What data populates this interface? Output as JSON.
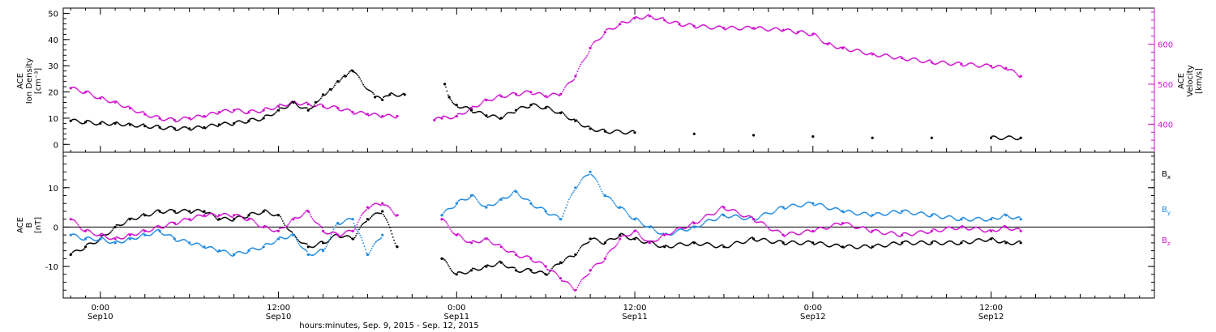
{
  "chart_data": [
    {
      "type": "scatter",
      "panel": "plasma",
      "ylabel_left": [
        "ACE",
        "Ion Density",
        "[cm⁻³]"
      ],
      "ylabel_right": [
        "ACE",
        "Velocity",
        "[km/s]"
      ],
      "left_axis": {
        "ylim": [
          -3,
          52
        ],
        "ticks": [
          0,
          10,
          20,
          30,
          40,
          50
        ],
        "labels": [
          "0",
          "10",
          "20",
          "30",
          "40",
          "50"
        ]
      },
      "right_axis": {
        "ylim": [
          330,
          690
        ],
        "ticks": [
          400,
          500,
          600
        ],
        "labels": [
          "400",
          "500",
          "600"
        ],
        "color": "#d010d0"
      },
      "series": [
        {
          "axis": "left",
          "color": "#000000",
          "points": [
            [
              -2,
              9
            ],
            [
              -1,
              8.5
            ],
            [
              0,
              8
            ],
            [
              1,
              8
            ],
            [
              2,
              7.5
            ],
            [
              3,
              7
            ],
            [
              4,
              6.5
            ],
            [
              5,
              6
            ],
            [
              6,
              6
            ],
            [
              7,
              6.5
            ],
            [
              8,
              7.5
            ],
            [
              9,
              8
            ],
            [
              10,
              9
            ],
            [
              11,
              10
            ],
            [
              12,
              13
            ],
            [
              13,
              16
            ],
            [
              14,
              13
            ],
            [
              14.5,
              16
            ],
            [
              15,
              19
            ],
            [
              15.5,
              21
            ],
            [
              16,
              24
            ],
            [
              16.5,
              26
            ],
            [
              17,
              28
            ],
            [
              18.5,
              18
            ],
            [
              19,
              17
            ],
            [
              19.5,
              19
            ],
            [
              20.5,
              19
            ],
            [
              23.2,
              23
            ],
            [
              23.5,
              18
            ],
            [
              24,
              15
            ],
            [
              25,
              13
            ],
            [
              26,
              11
            ],
            [
              27,
              10
            ],
            [
              28,
              13
            ],
            [
              29,
              15
            ],
            [
              30,
              14
            ],
            [
              31,
              12
            ],
            [
              32,
              9
            ],
            [
              33,
              6
            ],
            [
              34,
              5
            ],
            [
              36,
              4.5
            ],
            [
              40,
              4
            ],
            [
              44,
              3.5
            ],
            [
              48,
              3
            ],
            [
              52,
              2.5
            ],
            [
              56,
              2.5
            ],
            [
              60,
              2.5
            ],
            [
              62,
              2.5
            ]
          ]
        },
        {
          "axis": "right",
          "color": "#d010d0",
          "points": [
            [
              -2,
              490
            ],
            [
              -1,
              480
            ],
            [
              0,
              465
            ],
            [
              1,
              455
            ],
            [
              2,
              440
            ],
            [
              3,
              425
            ],
            [
              4,
              415
            ],
            [
              5,
              410
            ],
            [
              6,
              415
            ],
            [
              7,
              420
            ],
            [
              8,
              430
            ],
            [
              9,
              435
            ],
            [
              10,
              430
            ],
            [
              11,
              435
            ],
            [
              12,
              445
            ],
            [
              13,
              455
            ],
            [
              14,
              450
            ],
            [
              15,
              445
            ],
            [
              16,
              440
            ],
            [
              17,
              430
            ],
            [
              18,
              425
            ],
            [
              19,
              420
            ],
            [
              20,
              420
            ],
            [
              22.5,
              410
            ],
            [
              23,
              415
            ],
            [
              24,
              420
            ],
            [
              25,
              440
            ],
            [
              26,
              460
            ],
            [
              27,
              470
            ],
            [
              28,
              475
            ],
            [
              29,
              480
            ],
            [
              30,
              470
            ],
            [
              31,
              475
            ],
            [
              32,
              520
            ],
            [
              33,
              590
            ],
            [
              34,
              630
            ],
            [
              35,
              650
            ],
            [
              36,
              665
            ],
            [
              37,
              670
            ],
            [
              38,
              660
            ],
            [
              39,
              650
            ],
            [
              40,
              645
            ],
            [
              42,
              640
            ],
            [
              44,
              640
            ],
            [
              46,
              635
            ],
            [
              47,
              630
            ],
            [
              48,
              625
            ],
            [
              49,
              600
            ],
            [
              50,
              590
            ],
            [
              52,
              575
            ],
            [
              54,
              565
            ],
            [
              56,
              555
            ],
            [
              58,
              550
            ],
            [
              60,
              545
            ],
            [
              61,
              540
            ],
            [
              62,
              520
            ]
          ]
        }
      ]
    },
    {
      "type": "scatter",
      "panel": "magnetic-field",
      "ylabel_left": [
        "ACE",
        "B",
        "[nT]"
      ],
      "ylim": [
        -18,
        19
      ],
      "ticks": [
        -10,
        0,
        10
      ],
      "labels": [
        "-10",
        "0",
        "10"
      ],
      "legend": [
        "Bx",
        "By",
        "Bz"
      ],
      "legend_placement": "right",
      "series": [
        {
          "name": "Bx",
          "color": "#000000",
          "points": [
            [
              -2,
              -7
            ],
            [
              -1,
              -5
            ],
            [
              0,
              -3
            ],
            [
              1,
              0
            ],
            [
              2,
              2
            ],
            [
              3,
              3
            ],
            [
              4,
              4
            ],
            [
              5,
              4
            ],
            [
              6,
              4
            ],
            [
              7,
              4
            ],
            [
              8,
              2
            ],
            [
              9,
              2
            ],
            [
              10,
              3
            ],
            [
              11,
              4
            ],
            [
              12,
              3
            ],
            [
              13,
              -2
            ],
            [
              14,
              -5
            ],
            [
              15,
              -4
            ],
            [
              16,
              -2
            ],
            [
              17,
              -3
            ],
            [
              18,
              2
            ],
            [
              19,
              4
            ],
            [
              20,
              -5
            ],
            [
              23,
              -8
            ],
            [
              24,
              -12
            ],
            [
              25,
              -11
            ],
            [
              26,
              -10
            ],
            [
              27,
              -9
            ],
            [
              28,
              -11
            ],
            [
              29,
              -11
            ],
            [
              30,
              -12
            ],
            [
              31,
              -9
            ],
            [
              32,
              -7
            ],
            [
              33,
              -3
            ],
            [
              34,
              -4
            ],
            [
              35,
              -2
            ],
            [
              36,
              -3
            ],
            [
              38,
              -5
            ],
            [
              40,
              -4
            ],
            [
              42,
              -5
            ],
            [
              44,
              -3
            ],
            [
              46,
              -4
            ],
            [
              48,
              -4
            ],
            [
              50,
              -5
            ],
            [
              52,
              -5
            ],
            [
              54,
              -4
            ],
            [
              56,
              -4
            ],
            [
              58,
              -4
            ],
            [
              60,
              -3
            ],
            [
              61,
              -4
            ],
            [
              62,
              -4
            ]
          ]
        },
        {
          "name": "By",
          "color": "#1e8ae0",
          "points": [
            [
              -2,
              -2
            ],
            [
              -1,
              -3
            ],
            [
              0,
              -3
            ],
            [
              1,
              -4
            ],
            [
              2,
              -3
            ],
            [
              3,
              -2
            ],
            [
              4,
              -1
            ],
            [
              5,
              -3
            ],
            [
              6,
              -4
            ],
            [
              7,
              -5
            ],
            [
              8,
              -6
            ],
            [
              9,
              -7
            ],
            [
              10,
              -6
            ],
            [
              11,
              -5
            ],
            [
              12,
              -3
            ],
            [
              13,
              -2
            ],
            [
              14,
              -7
            ],
            [
              15,
              -6
            ],
            [
              16,
              1
            ],
            [
              17,
              2
            ],
            [
              18,
              -7
            ],
            [
              19,
              -2
            ],
            [
              23,
              3
            ],
            [
              24,
              6
            ],
            [
              25,
              8
            ],
            [
              26,
              5
            ],
            [
              27,
              7
            ],
            [
              28,
              9
            ],
            [
              29,
              6
            ],
            [
              30,
              4
            ],
            [
              31,
              2
            ],
            [
              32,
              10
            ],
            [
              33,
              14
            ],
            [
              34,
              8
            ],
            [
              35,
              5
            ],
            [
              36,
              2
            ],
            [
              37,
              0
            ],
            [
              38,
              -2
            ],
            [
              40,
              0
            ],
            [
              42,
              3
            ],
            [
              44,
              2
            ],
            [
              46,
              5
            ],
            [
              48,
              6
            ],
            [
              50,
              4
            ],
            [
              52,
              3
            ],
            [
              54,
              4
            ],
            [
              56,
              3
            ],
            [
              58,
              2
            ],
            [
              60,
              2
            ],
            [
              61,
              3
            ],
            [
              62,
              2
            ]
          ]
        },
        {
          "name": "Bz",
          "color": "#d010d0",
          "points": [
            [
              -2,
              2
            ],
            [
              -1,
              -1
            ],
            [
              0,
              -2
            ],
            [
              1,
              -3
            ],
            [
              2,
              -2
            ],
            [
              3,
              -1
            ],
            [
              4,
              0
            ],
            [
              5,
              1
            ],
            [
              6,
              2
            ],
            [
              7,
              3
            ],
            [
              8,
              3
            ],
            [
              9,
              3
            ],
            [
              10,
              2
            ],
            [
              11,
              0
            ],
            [
              12,
              -1
            ],
            [
              13,
              2
            ],
            [
              14,
              4
            ],
            [
              15,
              -1
            ],
            [
              16,
              -2
            ],
            [
              17,
              -1
            ],
            [
              18,
              5
            ],
            [
              19,
              6
            ],
            [
              20,
              3
            ],
            [
              23,
              2
            ],
            [
              24,
              -2
            ],
            [
              25,
              -4
            ],
            [
              26,
              -3
            ],
            [
              27,
              -5
            ],
            [
              28,
              -7
            ],
            [
              29,
              -8
            ],
            [
              30,
              -10
            ],
            [
              31,
              -13
            ],
            [
              32,
              -16
            ],
            [
              33,
              -11
            ],
            [
              34,
              -8
            ],
            [
              35,
              -3
            ],
            [
              36,
              -1
            ],
            [
              37,
              -4
            ],
            [
              38,
              -2
            ],
            [
              40,
              1
            ],
            [
              42,
              5
            ],
            [
              44,
              2
            ],
            [
              46,
              -2
            ],
            [
              48,
              -1
            ],
            [
              50,
              1
            ],
            [
              52,
              -1
            ],
            [
              54,
              -2
            ],
            [
              56,
              -1
            ],
            [
              58,
              0
            ],
            [
              60,
              -1
            ],
            [
              61,
              0
            ],
            [
              62,
              -1
            ]
          ]
        }
      ]
    }
  ],
  "x_axis": {
    "xlim": [
      -2.5,
      71
    ],
    "major_ticks": [
      0,
      12,
      24,
      36,
      48,
      60
    ],
    "tick_labels": [
      {
        "time": "0:00",
        "date": "Sep10"
      },
      {
        "time": "12:00",
        "date": "Sep10"
      },
      {
        "time": "0:00",
        "date": "Sep11"
      },
      {
        "time": "12:00",
        "date": "Sep11"
      },
      {
        "time": "0:00",
        "date": "Sep12"
      },
      {
        "time": "12:00",
        "date": "Sep12"
      }
    ],
    "xlabel": "hours:minutes, Sep. 9, 2015 - Sep. 12, 2015"
  },
  "legend_labels": {
    "bx": "B",
    "bx_sub": "x",
    "by": "B",
    "by_sub": "y",
    "bz": "B",
    "bz_sub": "z"
  }
}
